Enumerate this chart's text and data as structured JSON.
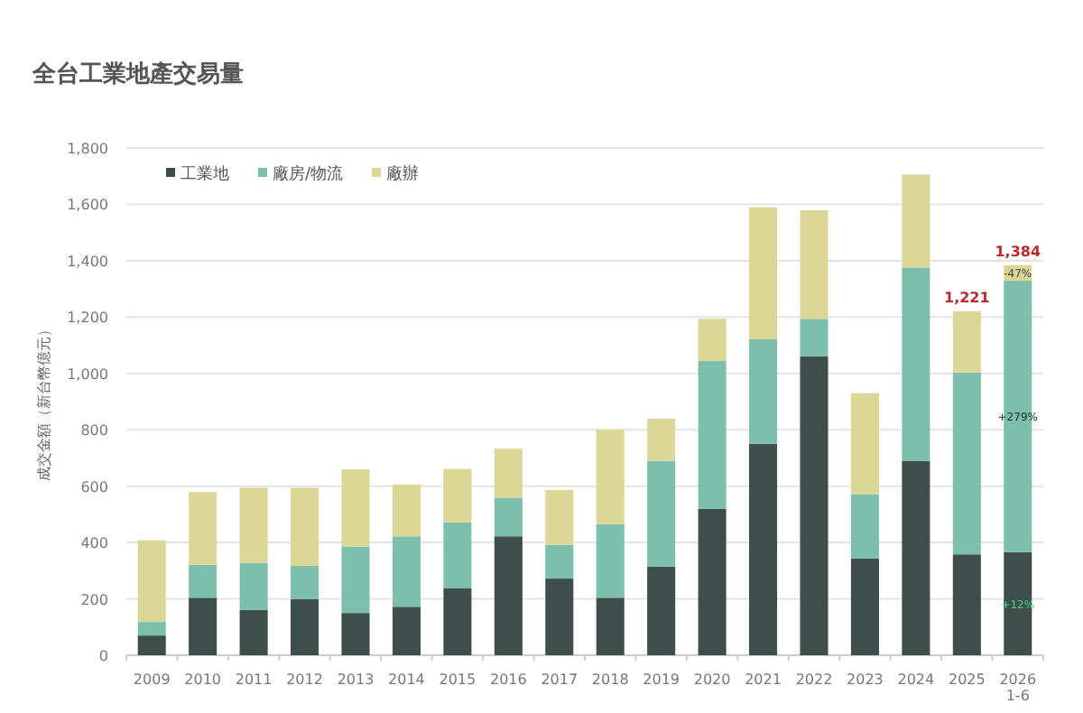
{
  "chart_data": {
    "type": "bar",
    "title": "全台工業地產交易量",
    "ylabel": "成交金額（新台幣億元）",
    "categories": [
      "2009",
      "2010",
      "2011",
      "2012",
      "2013",
      "2014",
      "2015",
      "2016",
      "2017",
      "2018",
      "2019",
      "2020",
      "2021",
      "2022",
      "2023",
      "2024",
      "2025",
      "2026\n1-6"
    ],
    "stacked": true,
    "series": [
      {
        "name": "工業地",
        "color": "#3e4f4b",
        "values": [
          70,
          204,
          161,
          199,
          150,
          172,
          237,
          422,
          272,
          204,
          315,
          519,
          750,
          1061,
          343,
          690,
          358,
          366
        ]
      },
      {
        "name": "廠房/物流",
        "color": "#7dbfad",
        "values": [
          48,
          117,
          167,
          118,
          236,
          250,
          235,
          137,
          120,
          261,
          375,
          525,
          371,
          133,
          229,
          686,
          645,
          963
        ]
      },
      {
        "name": "廠辦",
        "color": "#dcd796",
        "values": [
          290,
          258,
          266,
          277,
          274,
          184,
          189,
          174,
          195,
          336,
          150,
          150,
          469,
          385,
          358,
          330,
          218,
          55
        ]
      }
    ],
    "totals": [
      null,
      null,
      null,
      null,
      null,
      null,
      null,
      null,
      null,
      null,
      null,
      null,
      null,
      null,
      null,
      null,
      "1,221",
      "1,384"
    ],
    "annotations": [
      "-47%",
      "+279%",
      "+12%"
    ],
    "ylim": [
      0,
      1800
    ],
    "yticks": [
      0,
      {
        "value": 200,
        "label": "200"
      },
      {
        "value": 400,
        "label": "400"
      },
      {
        "value": 600,
        "label": "600"
      },
      {
        "value": 800,
        "label": "800"
      },
      {
        "value": 1000,
        "label": "1,000"
      },
      {
        "value": 1200,
        "label": "1,200"
      },
      {
        "value": 1400,
        "label": "1,400"
      },
      {
        "value": 1600,
        "label": "1,600"
      },
      {
        "value": 1800,
        "label": "1,800"
      }
    ],
    "grid": "y",
    "legend": "top left"
  }
}
